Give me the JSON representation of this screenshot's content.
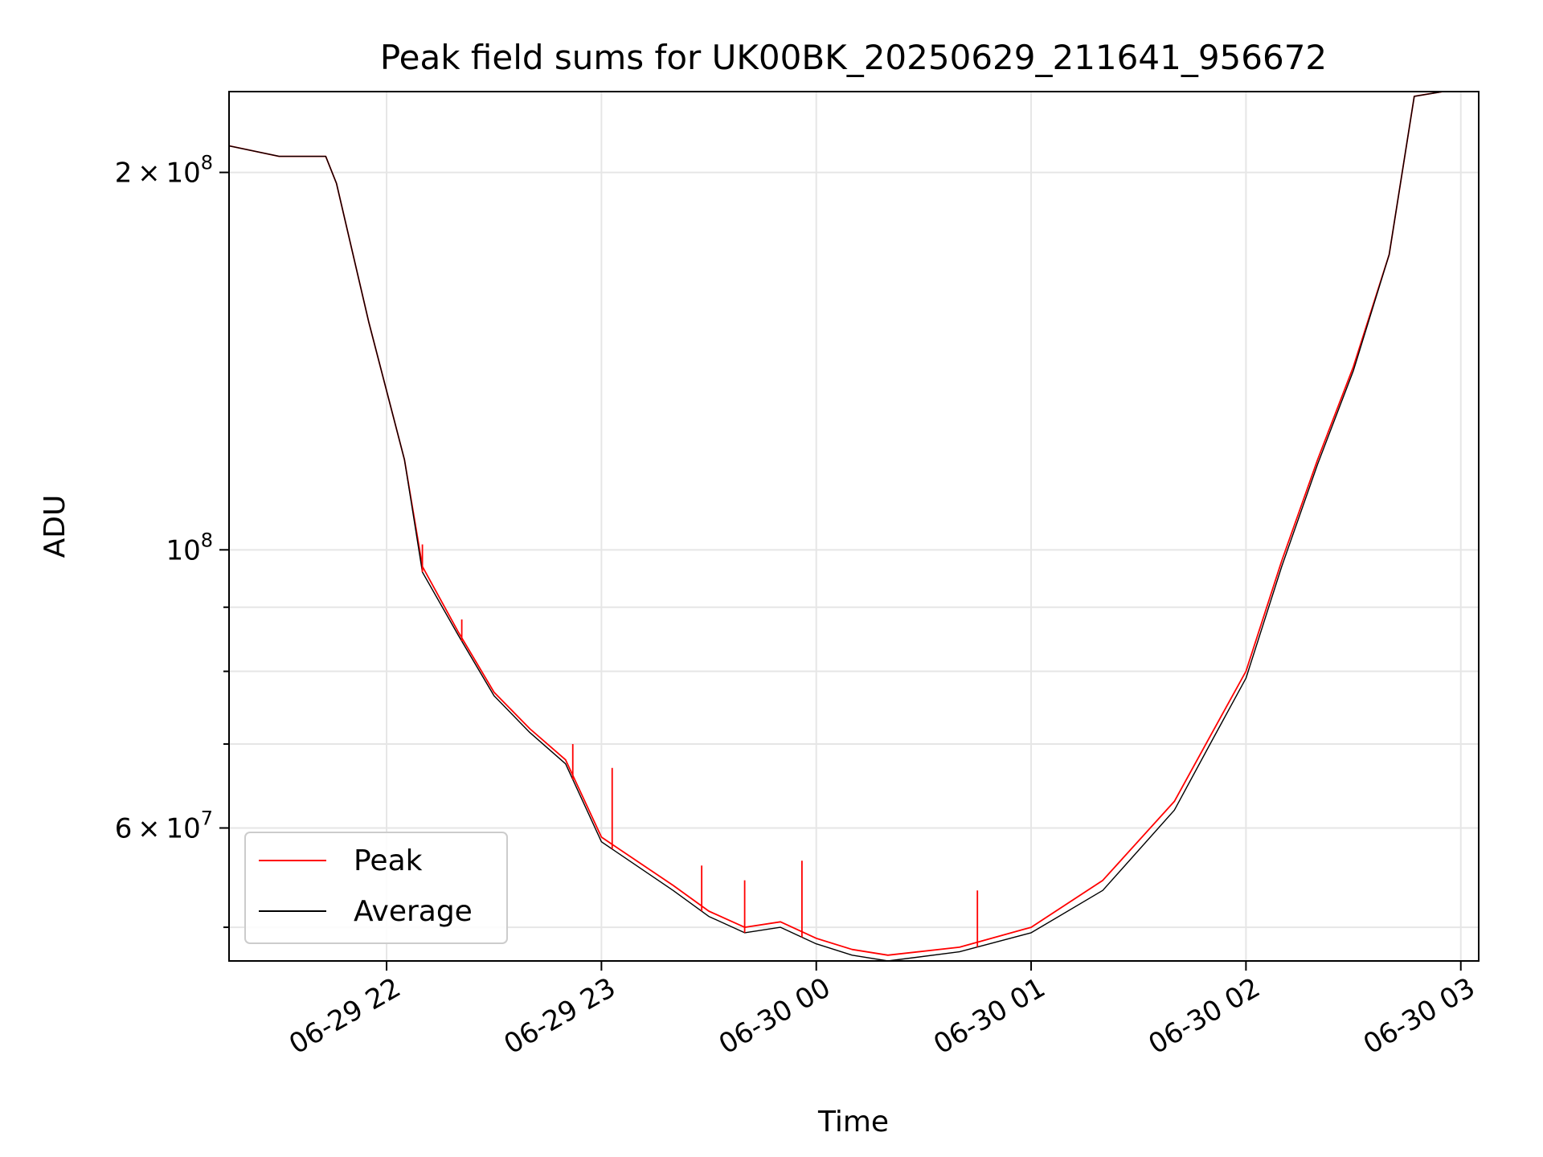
{
  "chart_data": {
    "type": "line",
    "title": "Peak field sums for UK00BK_20250629_211641_956672",
    "xlabel": "Time",
    "ylabel": "ADU",
    "y_scale": "log",
    "ylim": [
      47000000,
      232000000
    ],
    "xlim": [
      "2025-06-29 21:16",
      "2025-06-30 03:05"
    ],
    "grid": true,
    "legend_position": "lower-left",
    "x_ticks": [
      {
        "value": "2025-06-29 22:00",
        "label": "06-29 22"
      },
      {
        "value": "2025-06-29 23:00",
        "label": "06-29 23"
      },
      {
        "value": "2025-06-30 00:00",
        "label": "06-30 00"
      },
      {
        "value": "2025-06-30 01:00",
        "label": "06-30 01"
      },
      {
        "value": "2025-06-30 02:00",
        "label": "06-30 02"
      },
      {
        "value": "2025-06-30 03:00",
        "label": "06-30 03"
      }
    ],
    "y_ticks": [
      {
        "value": 200000000,
        "mantissa": "2",
        "exp": "8"
      },
      {
        "value": 100000000,
        "mantissa": "",
        "exp": "8"
      },
      {
        "value": 60000000,
        "mantissa": "6",
        "exp": "7"
      }
    ],
    "y_minor_ticks": [
      50000000,
      70000000,
      80000000,
      90000000
    ],
    "series": [
      {
        "name": "Peak",
        "color": "#ff0000",
        "x": [
          "2025-06-29 21:16",
          "2025-06-29 21:30",
          "2025-06-29 21:43",
          "2025-06-29 21:46",
          "2025-06-29 21:55",
          "2025-06-29 22:05",
          "2025-06-29 22:10",
          "2025-06-29 22:20",
          "2025-06-29 22:30",
          "2025-06-29 22:40",
          "2025-06-29 22:50",
          "2025-06-29 23:00",
          "2025-06-29 23:20",
          "2025-06-29 23:30",
          "2025-06-29 23:40",
          "2025-06-29 23:50",
          "2025-06-30 00:00",
          "2025-06-30 00:10",
          "2025-06-30 00:20",
          "2025-06-30 00:40",
          "2025-06-30 01:00",
          "2025-06-30 01:20",
          "2025-06-30 01:40",
          "2025-06-30 01:50",
          "2025-06-30 02:00",
          "2025-06-30 02:10",
          "2025-06-30 02:20",
          "2025-06-30 02:30",
          "2025-06-30 02:40",
          "2025-06-30 02:47",
          "2025-06-30 02:55",
          "2025-06-30 03:05"
        ],
        "y": [
          210000000,
          206000000,
          206000000,
          196000000,
          152000000,
          118000000,
          97000000,
          86000000,
          77000000,
          72000000,
          68000000,
          59000000,
          54000000,
          51500000,
          50000000,
          50500000,
          49000000,
          48000000,
          47500000,
          48200000,
          50000000,
          54500000,
          63000000,
          71000000,
          80000000,
          98000000,
          118000000,
          140000000,
          172000000,
          230000000,
          232000000,
          232000000
        ]
      },
      {
        "name": "Average",
        "color": "#000000",
        "x": [
          "2025-06-29 21:16",
          "2025-06-29 21:30",
          "2025-06-29 21:43",
          "2025-06-29 21:46",
          "2025-06-29 21:55",
          "2025-06-29 22:05",
          "2025-06-29 22:10",
          "2025-06-29 22:20",
          "2025-06-29 22:30",
          "2025-06-29 22:40",
          "2025-06-29 22:50",
          "2025-06-29 23:00",
          "2025-06-29 23:20",
          "2025-06-29 23:30",
          "2025-06-29 23:40",
          "2025-06-29 23:50",
          "2025-06-30 00:00",
          "2025-06-30 00:10",
          "2025-06-30 00:20",
          "2025-06-30 00:40",
          "2025-06-30 01:00",
          "2025-06-30 01:20",
          "2025-06-30 01:40",
          "2025-06-30 01:50",
          "2025-06-30 02:00",
          "2025-06-30 02:10",
          "2025-06-30 02:20",
          "2025-06-30 02:30",
          "2025-06-30 02:40",
          "2025-06-30 02:47",
          "2025-06-30 02:55",
          "2025-06-30 03:05"
        ],
        "y": [
          210000000,
          206000000,
          206000000,
          196000000,
          152000000,
          118000000,
          96000000,
          85500000,
          76500000,
          71500000,
          67500000,
          58500000,
          53500000,
          51000000,
          49500000,
          50000000,
          48500000,
          47500000,
          47000000,
          47800000,
          49500000,
          53500000,
          62000000,
          70000000,
          79000000,
          97000000,
          117000000,
          139000000,
          172000000,
          230000000,
          232000000,
          232000000
        ]
      }
    ],
    "spikes": [
      {
        "time": "2025-06-29 22:10",
        "value": 101000000
      },
      {
        "time": "2025-06-29 22:21",
        "value": 88000000
      },
      {
        "time": "2025-06-29 22:52",
        "value": 70000000
      },
      {
        "time": "2025-06-29 23:03",
        "value": 67000000
      },
      {
        "time": "2025-06-29 23:28",
        "value": 56000000
      },
      {
        "time": "2025-06-29 23:40",
        "value": 54500000
      },
      {
        "time": "2025-06-29 23:56",
        "value": 56500000
      },
      {
        "time": "2025-06-30 00:45",
        "value": 53500000
      }
    ]
  }
}
